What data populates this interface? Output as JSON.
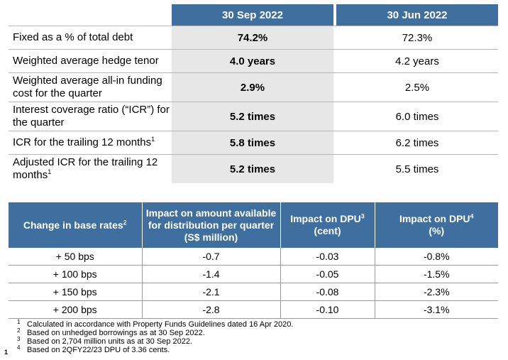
{
  "debt_table": {
    "headers": [
      "",
      "30 Sep 2022",
      "30 Jun 2022"
    ],
    "rows": [
      {
        "label": "Fixed as a % of total debt",
        "sup": "",
        "cur": "74.2%",
        "prev": "72.3%"
      },
      {
        "label": "Weighted average hedge tenor",
        "sup": "",
        "cur": "4.0 years",
        "prev": "4.2 years"
      },
      {
        "label": "Weighted average all-in funding cost for the quarter",
        "sup": "",
        "cur": "2.9%",
        "prev": "2.5%"
      },
      {
        "label": "Interest coverage ratio (“ICR”) for the quarter",
        "sup": "",
        "cur": "5.2 times",
        "prev": "6.0 times"
      },
      {
        "label": "ICR for the trailing 12 months",
        "sup": "1",
        "cur": "5.8 times",
        "prev": "6.2 times"
      },
      {
        "label": "Adjusted ICR for the trailing 12 months",
        "sup": "1",
        "cur": "5.2 times",
        "prev": "5.5 times"
      }
    ]
  },
  "sensitivity_table": {
    "headers": [
      {
        "text": "Change in base rates",
        "sup": "2"
      },
      {
        "text": "Impact on amount available for distribution per quarter (S$ million)",
        "sup": ""
      },
      {
        "text": "Impact on DPU",
        "sup": "3",
        "sub": "(cent)"
      },
      {
        "text": "Impact on DPU",
        "sup": "4",
        "sub": "(%)"
      }
    ],
    "rows": [
      [
        "+ 50 bps",
        "-0.7",
        "-0.03",
        "-0.8%"
      ],
      [
        "+ 100 bps",
        "-1.4",
        "-0.05",
        "-1.5%"
      ],
      [
        "+ 150 bps",
        "-2.1",
        "-0.08",
        "-2.3%"
      ],
      [
        "+ 200 bps",
        "-2.8",
        "-0.10",
        "-3.1%"
      ]
    ]
  },
  "footnotes": [
    {
      "num": "1",
      "text": "Calculated in accordance with Property Funds Guidelines dated 16 Apr 2020."
    },
    {
      "num": "2",
      "text": "Based on unhedged borrowings as at 30 Sep 2022."
    },
    {
      "num": "3",
      "text": "Based on 2,704 million units as at 30 Sep 2022."
    },
    {
      "num": "4",
      "text": "Based on 2QFY22/23 DPU of 3.36 cents."
    }
  ],
  "page_number": "1",
  "colors": {
    "header_bg": "#3f6f9f",
    "highlight_col": "#e7e7e7"
  }
}
